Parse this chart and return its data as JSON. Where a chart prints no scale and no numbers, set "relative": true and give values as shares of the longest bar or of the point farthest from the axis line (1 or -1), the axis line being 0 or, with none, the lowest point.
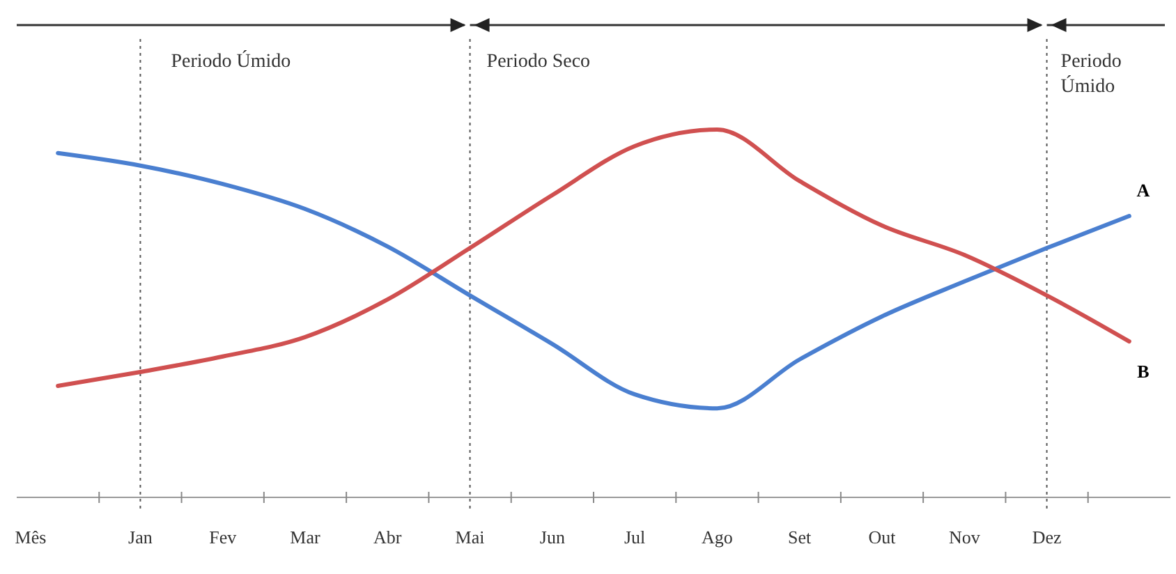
{
  "chart_data": {
    "type": "line",
    "relative": true,
    "xlabel": "Mês",
    "categories": [
      null,
      "Jan",
      "Fev",
      "Mar",
      "Abr",
      "Mai",
      "Jun",
      "Jul",
      "Ago",
      "Set",
      "Out",
      "Nov",
      "Dez",
      null
    ],
    "series": [
      {
        "name": "A",
        "color": "#4a7fd0",
        "values": [
          0.936,
          0.902,
          0.852,
          0.784,
          0.682,
          0.549,
          0.417,
          0.28,
          0.242,
          0.375,
          0.492,
          0.587,
          0.678,
          0.765
        ]
      },
      {
        "name": "B",
        "color": "#d05050",
        "values": [
          0.303,
          0.341,
          0.383,
          0.436,
          0.538,
          0.678,
          0.822,
          0.955,
          1,
          0.86,
          0.739,
          0.659,
          0.549,
          0.424
        ]
      }
    ],
    "ref_lines": [
      {
        "axis": "x",
        "value": "Jan",
        "line_style": "dotted"
      },
      {
        "axis": "x",
        "value": "Mai",
        "line_style": "dotted"
      },
      {
        "axis": "x",
        "value": "Dez",
        "line_style": "dotted"
      }
    ],
    "annotations": [
      "Periodo Úmido",
      "Periodo Seco",
      "Periodo Úmido"
    ],
    "grid": false,
    "marker": "none",
    "line_style": "solid"
  }
}
